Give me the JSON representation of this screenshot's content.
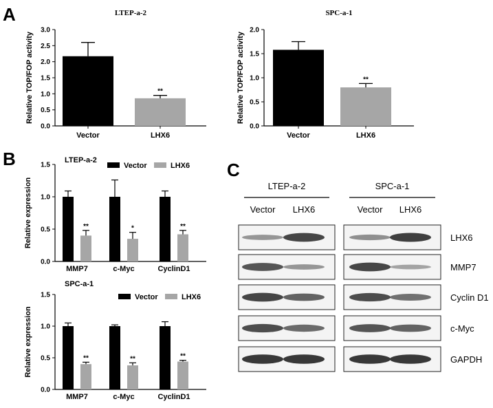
{
  "panels": {
    "a": "A",
    "b": "B",
    "c": "C"
  },
  "colors": {
    "vector": "#000000",
    "lhx6": "#a6a6a6",
    "band": "#2a2a2a"
  },
  "chart_data": [
    {
      "id": "A1",
      "type": "bar",
      "title": "LTEP-a-2",
      "ylabel": "Relative TOP/FOP activity",
      "xlabel": "",
      "ylim": [
        0,
        3.0
      ],
      "yticks": [
        "0.0",
        "0.5",
        "1.0",
        "1.5",
        "2.0",
        "2.5",
        "3.0"
      ],
      "categories": [
        "Vector",
        "LHX6"
      ],
      "values": [
        2.17,
        0.86
      ],
      "errors": [
        0.43,
        0.09
      ],
      "significance": [
        "",
        "**"
      ],
      "grid": false
    },
    {
      "id": "A2",
      "type": "bar",
      "title": "SPC-a-1",
      "ylabel": "Relative TOP/FOP activity",
      "xlabel": "",
      "ylim": [
        0,
        2.0
      ],
      "yticks": [
        "0.0",
        "0.5",
        "1.0",
        "1.5",
        "2.0"
      ],
      "categories": [
        "Vector",
        "LHX6"
      ],
      "values": [
        1.58,
        0.8
      ],
      "errors": [
        0.17,
        0.08
      ],
      "significance": [
        "",
        "**"
      ],
      "grid": false
    },
    {
      "id": "B1",
      "type": "bar",
      "title": "LTEP-a-2",
      "ylabel": "Relative expression",
      "ylim": [
        0,
        1.5
      ],
      "yticks": [
        "0.0",
        "0.5",
        "1.0",
        "1.5"
      ],
      "categories": [
        "MMP7",
        "c-Myc",
        "CyclinD1"
      ],
      "legend": "top-right",
      "series": [
        {
          "name": "Vector",
          "values": [
            1.0,
            1.0,
            1.0
          ],
          "errors": [
            0.09,
            0.26,
            0.09
          ],
          "significance": [
            "",
            "",
            ""
          ]
        },
        {
          "name": "LHX6",
          "values": [
            0.4,
            0.35,
            0.42
          ],
          "errors": [
            0.08,
            0.1,
            0.06
          ],
          "significance": [
            "**",
            "*",
            "**"
          ]
        }
      ],
      "grid": false
    },
    {
      "id": "B2",
      "type": "bar",
      "title": "SPC-a-1",
      "ylabel": "Relative expression",
      "ylim": [
        0,
        1.5
      ],
      "yticks": [
        "0.0",
        "0.5",
        "1.0",
        "1.5"
      ],
      "categories": [
        "MMP7",
        "c-Myc",
        "CyclinD1"
      ],
      "legend": "top-right",
      "series": [
        {
          "name": "Vector",
          "values": [
            1.0,
            1.0,
            1.0
          ],
          "errors": [
            0.05,
            0.02,
            0.07
          ],
          "significance": [
            "",
            "",
            ""
          ]
        },
        {
          "name": "LHX6",
          "values": [
            0.4,
            0.38,
            0.44
          ],
          "errors": [
            0.03,
            0.04,
            0.02
          ],
          "significance": [
            "**",
            "**",
            "**"
          ]
        }
      ],
      "grid": false
    }
  ],
  "western_blot": {
    "cell_lines": [
      "LTEP-a-2",
      "SPC-a-1"
    ],
    "lanes": [
      "Vector",
      "LHX6",
      "Vector",
      "LHX6"
    ],
    "proteins": [
      "LHX6",
      "MMP7",
      "Cyclin D1",
      "c-Myc",
      "GAPDH"
    ],
    "band_intensity": [
      [
        0.3,
        0.85,
        0.35,
        0.9
      ],
      [
        0.75,
        0.3,
        0.85,
        0.2
      ],
      [
        0.85,
        0.65,
        0.8,
        0.55
      ],
      [
        0.8,
        0.6,
        0.75,
        0.65
      ],
      [
        0.95,
        0.95,
        0.95,
        0.95
      ]
    ]
  }
}
